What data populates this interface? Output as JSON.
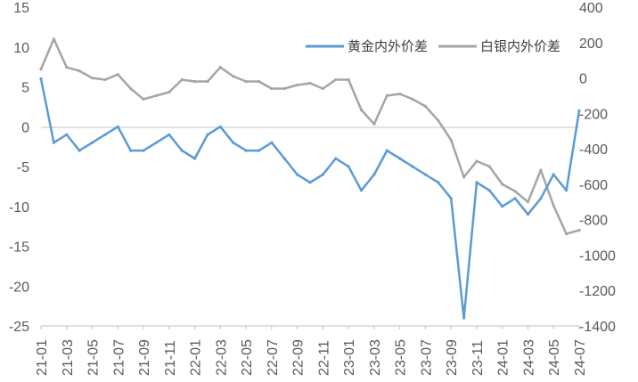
{
  "chart_data": {
    "type": "line",
    "title": "",
    "xlabel": "",
    "ylabel_left": "",
    "ylabel_right": "",
    "x_tick_labels": [
      "21-01",
      "21-03",
      "21-05",
      "21-07",
      "21-09",
      "21-11",
      "22-01",
      "22-03",
      "22-05",
      "22-07",
      "22-09",
      "22-11",
      "23-01",
      "23-03",
      "23-05",
      "23-07",
      "23-09",
      "23-11",
      "24-01",
      "24-03",
      "24-05",
      "24-07"
    ],
    "x_range": [
      "2021-01",
      "2024-07"
    ],
    "y_left": {
      "min": -25,
      "max": 15,
      "ticks": [
        15,
        10,
        5,
        0,
        -5,
        -10,
        -15,
        -20,
        -25
      ],
      "tick_labels": [
        "15",
        "10",
        "5",
        "0",
        "-5",
        "-10",
        "-15",
        "-20",
        "-25"
      ]
    },
    "y_right": {
      "min": -1400,
      "max": 400,
      "ticks": [
        400,
        200,
        0,
        -200,
        -400,
        -600,
        -800,
        -1000,
        -1200,
        -1400
      ],
      "tick_labels": [
        "400",
        "200",
        "0",
        "-200",
        "-400",
        "-600",
        "-800",
        "-1000",
        "-1200",
        "-1400"
      ]
    },
    "grid": false,
    "zero_line": true,
    "legend_position": "top-right",
    "colors": {
      "gold": "#5b9bd5",
      "silver": "#a5a5a5",
      "zero_line": "#d9d9d9",
      "axis": "#bfbfbf"
    },
    "series": [
      {
        "name": "黄金内外价差",
        "axis": "left",
        "x": [
          "2021-01",
          "2021-02",
          "2021-03",
          "2021-04",
          "2021-05",
          "2021-06",
          "2021-07",
          "2021-08",
          "2021-09",
          "2021-10",
          "2021-11",
          "2021-12",
          "2022-01",
          "2022-02",
          "2022-03",
          "2022-04",
          "2022-05",
          "2022-06",
          "2022-07",
          "2022-08",
          "2022-09",
          "2022-10",
          "2022-11",
          "2022-12",
          "2023-01",
          "2023-02",
          "2023-03",
          "2023-04",
          "2023-05",
          "2023-06",
          "2023-07",
          "2023-08",
          "2023-09",
          "2023-10",
          "2023-11",
          "2023-12",
          "2024-01",
          "2024-02",
          "2024-03",
          "2024-04",
          "2024-05",
          "2024-06",
          "2024-07"
        ],
        "values": [
          6,
          -2,
          -1,
          -3,
          -2,
          -1,
          0,
          -3,
          -3,
          -2,
          -1,
          -3,
          -4,
          -1,
          0,
          -2,
          -3,
          -3,
          -2,
          -4,
          -6,
          -7,
          -6,
          -4,
          -5,
          -8,
          -6,
          -3,
          -4,
          -5,
          -6,
          -7,
          -9,
          -24,
          -7,
          -8,
          -10,
          -9,
          -11,
          -9,
          -6,
          -8,
          2
        ]
      },
      {
        "name": "白银内外价差",
        "axis": "right",
        "x": [
          "2021-01",
          "2021-02",
          "2021-03",
          "2021-04",
          "2021-05",
          "2021-06",
          "2021-07",
          "2021-08",
          "2021-09",
          "2021-10",
          "2021-11",
          "2021-12",
          "2022-01",
          "2022-02",
          "2022-03",
          "2022-04",
          "2022-05",
          "2022-06",
          "2022-07",
          "2022-08",
          "2022-09",
          "2022-10",
          "2022-11",
          "2022-12",
          "2023-01",
          "2023-02",
          "2023-03",
          "2023-04",
          "2023-05",
          "2023-06",
          "2023-07",
          "2023-08",
          "2023-09",
          "2023-10",
          "2023-11",
          "2023-12",
          "2024-01",
          "2024-02",
          "2024-03",
          "2024-04",
          "2024-05",
          "2024-06",
          "2024-07"
        ],
        "values": [
          50,
          220,
          60,
          40,
          0,
          -10,
          20,
          -60,
          -120,
          -100,
          -80,
          -10,
          -20,
          -20,
          60,
          10,
          -20,
          -20,
          -60,
          -60,
          -40,
          -30,
          -60,
          -10,
          -10,
          -180,
          -260,
          -100,
          -90,
          -120,
          -160,
          -240,
          -350,
          -560,
          -470,
          -500,
          -600,
          -640,
          -700,
          -520,
          -720,
          -880,
          -860
        ]
      }
    ]
  }
}
